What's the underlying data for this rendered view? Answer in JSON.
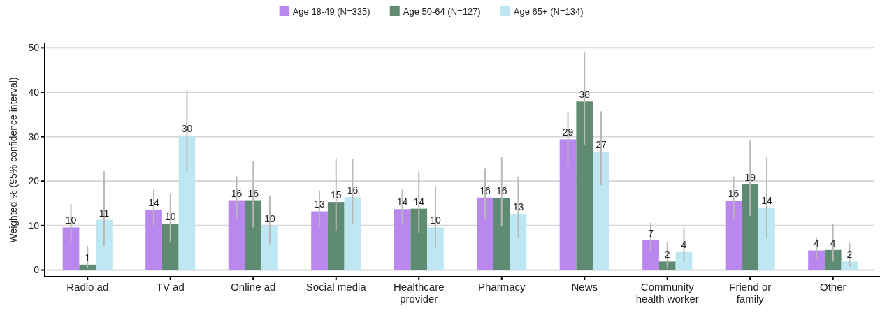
{
  "chart_data": {
    "type": "bar",
    "ylabel": "Weighted % (95% confidence interval)",
    "categories": [
      "Radio ad",
      "TV ad",
      "Online ad",
      "Social media",
      "Healthcare provider",
      "Pharmacy",
      "News",
      "Community health worker",
      "Friend or family",
      "Other"
    ],
    "series": [
      {
        "name": "Age 18-49 (N=335)",
        "color": "#b987ee",
        "values": [
          9.6,
          13.6,
          15.7,
          13.2,
          13.7,
          16.3,
          29.4,
          6.7,
          15.6,
          4.4
        ],
        "value_labels": [
          "10",
          "14",
          "16",
          "13",
          "14",
          "16",
          "29",
          "7",
          "16",
          "4"
        ],
        "errors": [
          [
            6.3,
            14.8
          ],
          [
            10.0,
            18.3
          ],
          [
            11.6,
            21.1
          ],
          [
            9.7,
            17.7
          ],
          [
            10.4,
            18.1
          ],
          [
            11.4,
            22.8
          ],
          [
            23.7,
            35.5
          ],
          [
            4.2,
            10.6
          ],
          [
            11.4,
            21.0
          ],
          [
            2.6,
            7.4
          ]
        ]
      },
      {
        "name": "Age 50-64 (N=127)",
        "color": "#5e8b72",
        "values": [
          1.2,
          10.4,
          15.7,
          15.3,
          13.8,
          16.2,
          37.9,
          1.9,
          19.3,
          4.5
        ],
        "value_labels": [
          "1",
          "10",
          "16",
          "15",
          "14",
          "16",
          "38",
          "2",
          "19",
          "4"
        ],
        "errors": [
          [
            0.5,
            5.4
          ],
          [
            6.2,
            17.3
          ],
          [
            9.6,
            24.6
          ],
          [
            8.9,
            25.2
          ],
          [
            8.3,
            22.2
          ],
          [
            9.8,
            25.5
          ],
          [
            28.1,
            48.9
          ],
          [
            0.6,
            6.2
          ],
          [
            12.2,
            29.1
          ],
          [
            1.9,
            10.3
          ]
        ]
      },
      {
        "name": "Age 65+ (N=134)",
        "color": "#bde8f3",
        "values": [
          11.3,
          30.3,
          10.0,
          16.4,
          9.6,
          12.6,
          26.6,
          4.2,
          14.0,
          1.9
        ],
        "value_labels": [
          "11",
          "30",
          "10",
          "16",
          "10",
          "13",
          "27",
          "4",
          "14",
          "2"
        ],
        "errors": [
          [
            5.4,
            22.2
          ],
          [
            21.8,
            40.4
          ],
          [
            5.8,
            16.7
          ],
          [
            10.5,
            25.0
          ],
          [
            4.7,
            18.9
          ],
          [
            7.3,
            21.0
          ],
          [
            19.1,
            35.7
          ],
          [
            1.8,
            9.6
          ],
          [
            7.3,
            25.3
          ],
          [
            0.7,
            6.1
          ]
        ]
      }
    ],
    "ylim": [
      -1.5,
      51
    ],
    "yticks": [
      0,
      10,
      20,
      30,
      40,
      50
    ],
    "grid": "y",
    "legend": "top"
  }
}
